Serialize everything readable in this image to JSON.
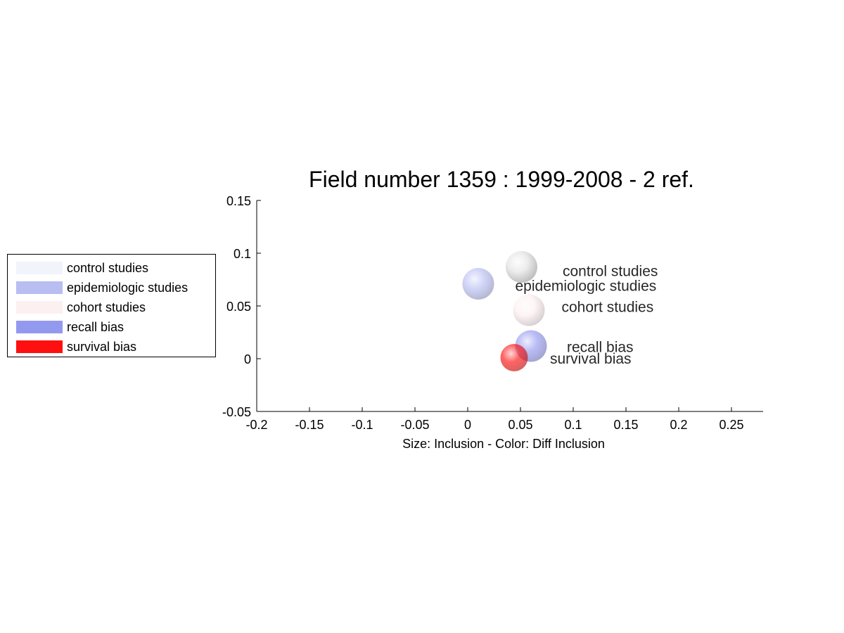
{
  "chart_data": {
    "type": "scatter",
    "title": "Field number 1359 : 1999-2008  - 2 ref.",
    "xlabel": "Size: Inclusion - Color: Diff Inclusion",
    "ylabel": "",
    "xlim": [
      -0.2,
      0.28
    ],
    "ylim": [
      -0.05,
      0.15
    ],
    "xticks": [
      -0.2,
      -0.15,
      -0.1,
      -0.05,
      0,
      0.05,
      0.1,
      0.15,
      0.2,
      0.25
    ],
    "xtick_labels": [
      "-0.2",
      "-0.15",
      "-0.1",
      "-0.05",
      "0",
      "0.05",
      "0.1",
      "0.15",
      "0.2",
      "0.25"
    ],
    "yticks": [
      -0.05,
      0,
      0.05,
      0.1,
      0.15
    ],
    "ytick_labels": [
      "-0.05",
      "0",
      "0.05",
      "0.1",
      "0.15"
    ],
    "grid": false,
    "legend_position": "left",
    "points": [
      {
        "name": "control studies",
        "x": 0.051,
        "y": 0.087,
        "size": 0.03,
        "color": "#f2f4fc",
        "label_x": 0.09,
        "label_y": 0.083
      },
      {
        "name": "epidemiologic studies",
        "x": 0.01,
        "y": 0.071,
        "size": 0.03,
        "color": "#b8bdf2",
        "label_x": 0.045,
        "label_y": 0.069
      },
      {
        "name": "cohort studies",
        "x": 0.058,
        "y": 0.046,
        "size": 0.03,
        "color": "#fdf0f0",
        "label_x": 0.089,
        "label_y": 0.049
      },
      {
        "name": "recall bias",
        "x": 0.06,
        "y": 0.012,
        "size": 0.03,
        "color": "#9499f0",
        "label_x": 0.094,
        "label_y": 0.011
      },
      {
        "name": "survival bias",
        "x": 0.044,
        "y": 0.001,
        "size": 0.026,
        "color": "#ff1010",
        "label_x": 0.078,
        "label_y": 0.0
      }
    ]
  },
  "legend": {
    "items": [
      {
        "label": "control studies",
        "color": "#f2f4fc"
      },
      {
        "label": "epidemiologic studies",
        "color": "#b8bdf2"
      },
      {
        "label": "cohort studies",
        "color": "#fdf0f0"
      },
      {
        "label": "recall bias",
        "color": "#9499f0"
      },
      {
        "label": "survival bias",
        "color": "#ff1010"
      }
    ]
  }
}
